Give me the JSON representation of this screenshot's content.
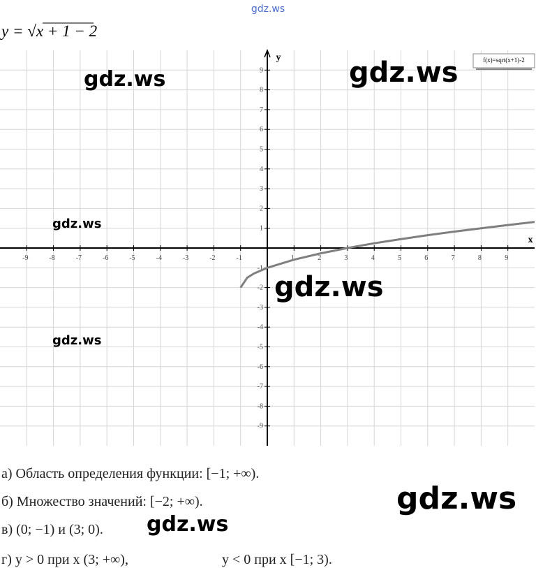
{
  "header": {
    "site": "gdz.ws",
    "formula": "y = √x + 1 − 2"
  },
  "chart_data": {
    "type": "line",
    "x_label": "x",
    "y_label": "y",
    "x": [
      -1,
      -0.75,
      -0.5,
      0,
      1,
      2,
      3,
      4,
      5,
      6,
      7,
      8,
      9,
      10
    ],
    "series": [
      {
        "name": "f(x)=sqrt(x+1)-2",
        "color": "#7f7f7f",
        "values": [
          -2,
          -1.5,
          -1.29,
          -1,
          -0.59,
          -0.27,
          0,
          0.24,
          0.45,
          0.65,
          0.83,
          1,
          1.16,
          1.32
        ]
      }
    ],
    "xlim": [
      -10,
      10
    ],
    "ylim": [
      -10,
      10
    ],
    "xticks": [
      -9,
      -8,
      -7,
      -6,
      -5,
      -4,
      -3,
      -2,
      -1,
      1,
      2,
      3,
      4,
      5,
      6,
      7,
      8,
      9
    ],
    "yticks": [
      -9,
      -8,
      -7,
      -6,
      -5,
      -4,
      -3,
      -2,
      -1,
      1,
      2,
      3,
      4,
      5,
      6,
      7,
      8,
      9
    ],
    "grid": true,
    "legend": "upper right"
  },
  "answers": [
    "а) Область определения функции: [−1; +∞).",
    "б) Множество значений: [−2; +∞).",
    "в) (0; −1) и (3; 0).",
    "г) y > 0 при x (3; +∞),",
    "y < 0 при x [−1; 3)."
  ],
  "watermarks": [
    "gdz.ws",
    "gdz.ws",
    "gdz.ws",
    "gdz.ws",
    "gdz.ws",
    "gdz.ws",
    "gdz.ws"
  ]
}
